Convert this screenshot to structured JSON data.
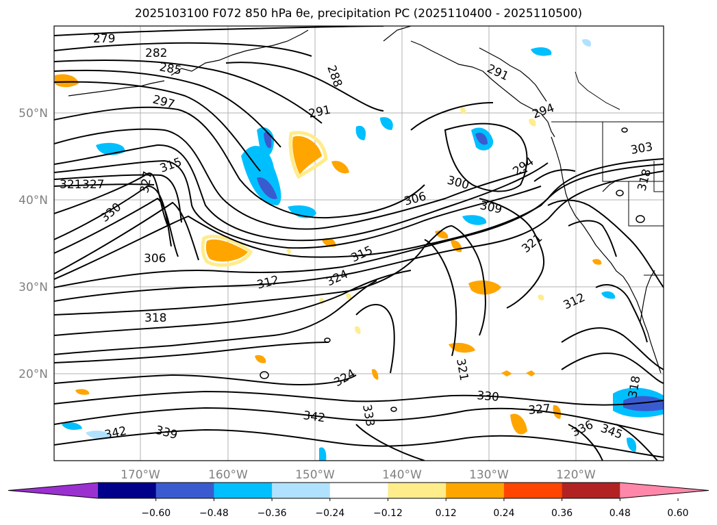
{
  "title": "2025103100 F072 850 hPa θe, precipitation PC (2025110400 - 2025110500)",
  "map": {
    "lon_ticks": [
      "170°W",
      "160°W",
      "150°W",
      "140°W",
      "130°W",
      "120°W"
    ],
    "lat_ticks": [
      "50°N",
      "40°N",
      "30°N",
      "20°N"
    ],
    "contour_labels": [
      "279",
      "282",
      "285",
      "288",
      "291",
      "291",
      "294",
      "294",
      "297",
      "300",
      "303",
      "306",
      "306",
      "309",
      "312",
      "312",
      "315",
      "315",
      "318",
      "318",
      "318",
      "321",
      "321",
      "321",
      "324",
      "324",
      "327",
      "327",
      "327",
      "330",
      "330",
      "333",
      "336",
      "339",
      "342",
      "342",
      "345"
    ],
    "tick_color": "#808080"
  },
  "colorbar": {
    "colors": [
      "#9b30d0",
      "#00008b",
      "#3a5bd0",
      "#00bfff",
      "#b0e2ff",
      "#ffffff",
      "#ffec8b",
      "#ffa500",
      "#ff4500",
      "#b22222",
      "#ff88aa"
    ],
    "tick_labels": [
      "−0.60",
      "−0.48",
      "−0.36",
      "−0.24",
      "−0.12",
      "0.12",
      "0.24",
      "0.36",
      "0.48",
      "0.60"
    ]
  }
}
